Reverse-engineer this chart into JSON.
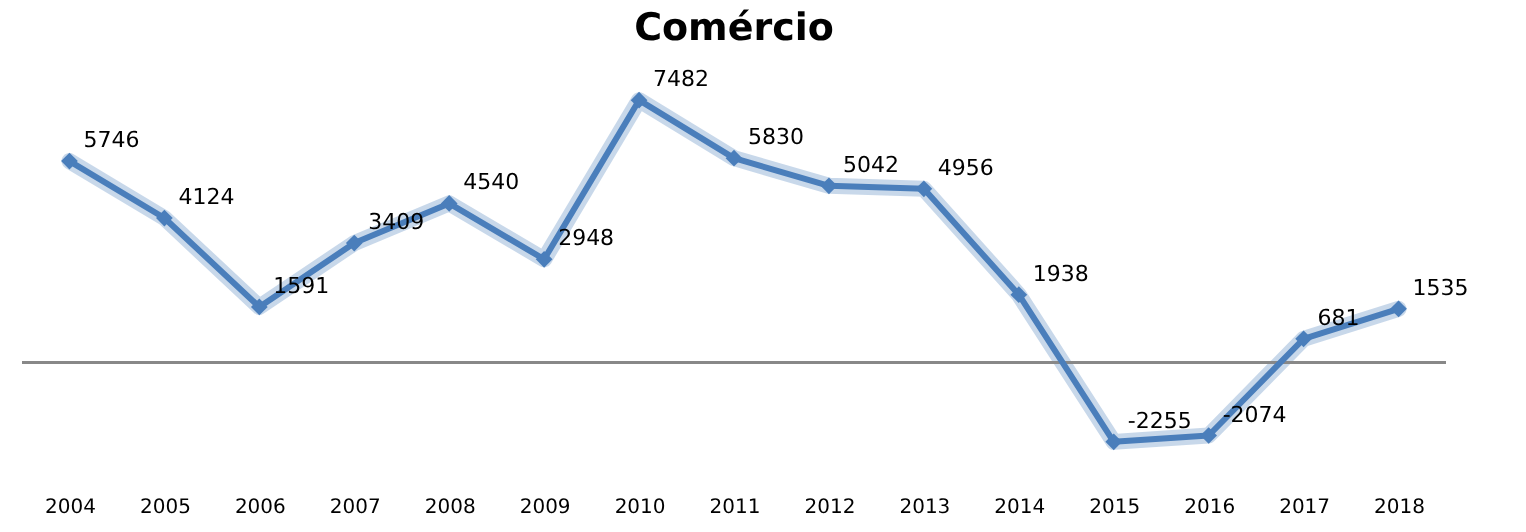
{
  "chart_data": {
    "type": "line",
    "title": "Comércio",
    "categories": [
      "2004",
      "2005",
      "2006",
      "2007",
      "2008",
      "2009",
      "2010",
      "2011",
      "2012",
      "2013",
      "2014",
      "2015",
      "2016",
      "2017",
      "2018"
    ],
    "series": [
      {
        "color": "#4a7ebb",
        "values": [
          5746,
          4124,
          1591,
          3409,
          4540,
          2948,
          7482,
          5830,
          5042,
          4956,
          1938,
          -2255,
          -2074,
          681,
          1535
        ]
      }
    ],
    "data_labels": true,
    "marker": "diamond",
    "grid": false
  }
}
